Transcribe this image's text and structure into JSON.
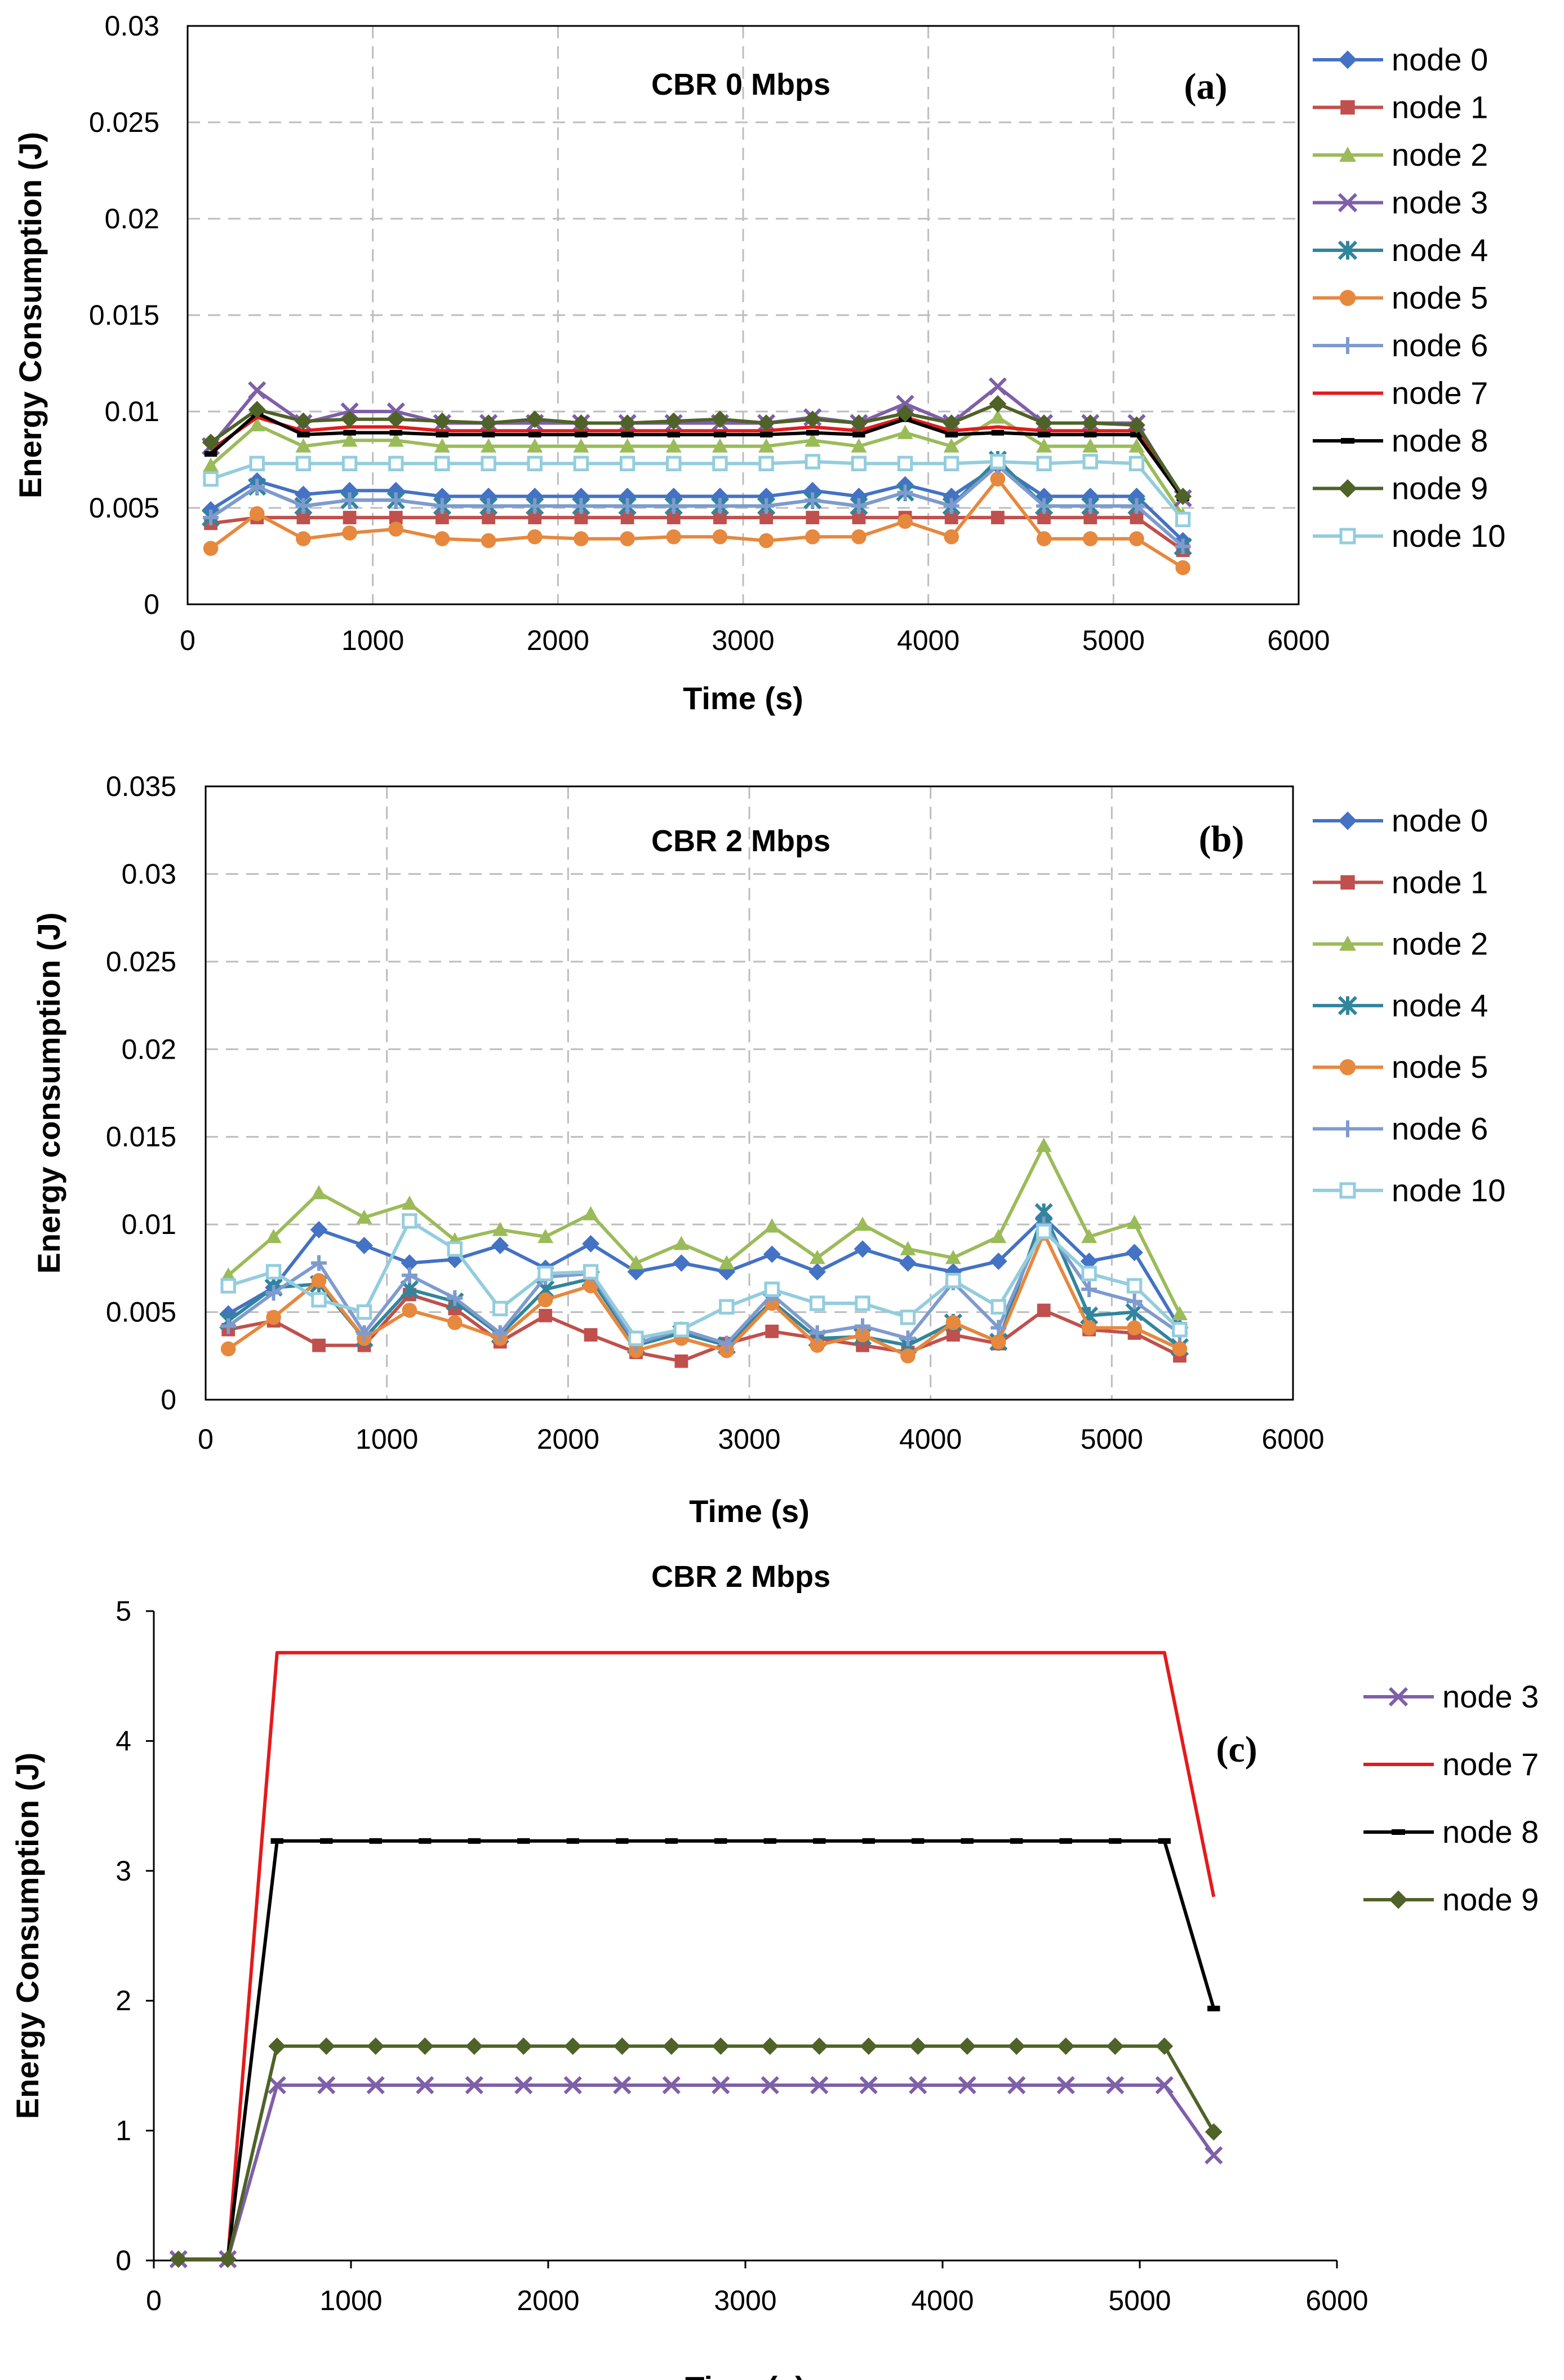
{
  "chart_data": [
    {
      "panel": "a",
      "type": "line",
      "title": "CBR 0 Mbps",
      "panel_label": "(a)",
      "xlabel": "Time (s)",
      "ylabel": "Energy Consumption (J)",
      "xlim": [
        0,
        6000
      ],
      "ylim": [
        0,
        0.03
      ],
      "xticks": [
        0,
        1000,
        2000,
        3000,
        4000,
        5000,
        6000
      ],
      "yticks": [
        0,
        0.005,
        0.01,
        0.015,
        0.02,
        0.025,
        0.03
      ],
      "ytick_labels": [
        "0",
        "0.005",
        "0.01",
        "0.015",
        "0.02",
        "0.025",
        "0.03"
      ],
      "grid": "dashed",
      "legend_position": "right",
      "x": [
        125,
        375,
        625,
        875,
        1125,
        1375,
        1625,
        1875,
        2125,
        2375,
        2625,
        2875,
        3125,
        3375,
        3625,
        3875,
        4125,
        4375,
        4625,
        4875,
        5125,
        5375
      ],
      "series": [
        {
          "name": "node 0",
          "color": "#4472C4",
          "marker": "diamond",
          "values": [
            0.0049,
            0.0064,
            0.0057,
            0.0059,
            0.0059,
            0.0056,
            0.0056,
            0.0056,
            0.0056,
            0.0056,
            0.0056,
            0.0056,
            0.0056,
            0.0059,
            0.0056,
            0.0062,
            0.0056,
            0.0072,
            0.0056,
            0.0056,
            0.0056,
            0.0033
          ]
        },
        {
          "name": "node 1",
          "color": "#C0504D",
          "marker": "square",
          "values": [
            0.0042,
            0.0045,
            0.0045,
            0.0045,
            0.0045,
            0.0045,
            0.0045,
            0.0045,
            0.0045,
            0.0045,
            0.0045,
            0.0045,
            0.0045,
            0.0045,
            0.0045,
            0.0045,
            0.0045,
            0.0045,
            0.0045,
            0.0045,
            0.0045,
            0.0028
          ]
        },
        {
          "name": "node 2",
          "color": "#9BBB59",
          "marker": "triangle",
          "values": [
            0.0072,
            0.0093,
            0.0082,
            0.0085,
            0.0085,
            0.0082,
            0.0082,
            0.0082,
            0.0082,
            0.0082,
            0.0082,
            0.0082,
            0.0082,
            0.0085,
            0.0082,
            0.0089,
            0.0082,
            0.0097,
            0.0082,
            0.0082,
            0.0082,
            0.0046
          ]
        },
        {
          "name": "node 3",
          "color": "#7F5FA8",
          "marker": "x",
          "values": [
            0.0082,
            0.0111,
            0.0094,
            0.01,
            0.01,
            0.0094,
            0.0094,
            0.0094,
            0.0094,
            0.0094,
            0.0094,
            0.0094,
            0.0094,
            0.0097,
            0.0094,
            0.0104,
            0.0094,
            0.0113,
            0.0094,
            0.0094,
            0.0094,
            0.0055
          ]
        },
        {
          "name": "node 4",
          "color": "#31859C",
          "marker": "star",
          "values": [
            0.0045,
            0.0061,
            0.0051,
            0.0054,
            0.0054,
            0.0051,
            0.0051,
            0.0051,
            0.0051,
            0.0051,
            0.0051,
            0.0051,
            0.0051,
            0.0054,
            0.0051,
            0.0058,
            0.0051,
            0.0075,
            0.0051,
            0.0051,
            0.0051,
            0.003
          ]
        },
        {
          "name": "node 5",
          "color": "#E6883E",
          "marker": "circle",
          "values": [
            0.0029,
            0.0047,
            0.0034,
            0.0037,
            0.0039,
            0.0034,
            0.0033,
            0.0035,
            0.0034,
            0.0034,
            0.0035,
            0.0035,
            0.0033,
            0.0035,
            0.0035,
            0.0043,
            0.0035,
            0.0065,
            0.0034,
            0.0034,
            0.0034,
            0.0019
          ]
        },
        {
          "name": "node 6",
          "color": "#7E9BCF",
          "marker": "plus",
          "values": [
            0.0045,
            0.0061,
            0.0051,
            0.0054,
            0.0054,
            0.0051,
            0.0051,
            0.0051,
            0.0051,
            0.0051,
            0.0051,
            0.0051,
            0.0051,
            0.0054,
            0.0051,
            0.0058,
            0.0051,
            0.0072,
            0.0051,
            0.0051,
            0.0051,
            0.003
          ]
        },
        {
          "name": "node 7",
          "color": "#E41A1C",
          "marker": "none",
          "values": [
            0.008,
            0.0097,
            0.009,
            0.0092,
            0.0092,
            0.009,
            0.009,
            0.009,
            0.009,
            0.009,
            0.009,
            0.009,
            0.009,
            0.0092,
            0.009,
            0.0097,
            0.009,
            0.0092,
            0.009,
            0.009,
            0.009,
            0.0055
          ]
        },
        {
          "name": "node 8",
          "color": "#000000",
          "marker": "dash",
          "values": [
            0.0078,
            0.0099,
            0.0088,
            0.0089,
            0.0089,
            0.0088,
            0.0088,
            0.0088,
            0.0088,
            0.0088,
            0.0088,
            0.0088,
            0.0088,
            0.0089,
            0.0088,
            0.0096,
            0.0088,
            0.0089,
            0.0088,
            0.0088,
            0.0088,
            0.0055
          ]
        },
        {
          "name": "node 9",
          "color": "#4F6228",
          "marker": "diamond",
          "values": [
            0.0084,
            0.0101,
            0.0095,
            0.0096,
            0.0096,
            0.0095,
            0.0094,
            0.0096,
            0.0094,
            0.0094,
            0.0095,
            0.0096,
            0.0094,
            0.0096,
            0.0094,
            0.0099,
            0.0094,
            0.0104,
            0.0094,
            0.0094,
            0.0093,
            0.0056
          ]
        },
        {
          "name": "node 10",
          "color": "#93CDDD",
          "marker": "open-square",
          "values": [
            0.0065,
            0.0073,
            0.0073,
            0.0073,
            0.0073,
            0.0073,
            0.0073,
            0.0073,
            0.0073,
            0.0073,
            0.0073,
            0.0073,
            0.0073,
            0.0074,
            0.0073,
            0.0073,
            0.0073,
            0.0074,
            0.0073,
            0.0074,
            0.0073,
            0.0044
          ]
        }
      ]
    },
    {
      "panel": "b",
      "type": "line",
      "title": "CBR 2 Mbps",
      "panel_label": "(b)",
      "xlabel": "Time (s)",
      "ylabel": "Energy consumption (J)",
      "xlim": [
        0,
        6000
      ],
      "ylim": [
        0,
        0.035
      ],
      "xticks": [
        0,
        1000,
        2000,
        3000,
        4000,
        5000,
        6000
      ],
      "yticks": [
        0,
        0.005,
        0.01,
        0.015,
        0.02,
        0.025,
        0.03,
        0.035
      ],
      "ytick_labels": [
        "0",
        "0.005",
        "0.01",
        "0.015",
        "0.02",
        "0.025",
        "0.03",
        "0.035"
      ],
      "grid": "dashed",
      "legend_position": "right",
      "x": [
        125,
        375,
        625,
        875,
        1125,
        1375,
        1625,
        1875,
        2125,
        2375,
        2625,
        2875,
        3125,
        3375,
        3625,
        3875,
        4125,
        4375,
        4625,
        4875,
        5125,
        5375
      ],
      "series": [
        {
          "name": "node 0",
          "color": "#4472C4",
          "marker": "diamond",
          "values": [
            0.0049,
            0.0064,
            0.0097,
            0.0088,
            0.0078,
            0.008,
            0.0088,
            0.0075,
            0.0089,
            0.0073,
            0.0078,
            0.0073,
            0.0083,
            0.0073,
            0.0086,
            0.0078,
            0.0073,
            0.0079,
            0.0104,
            0.0079,
            0.0084,
            0.0041
          ]
        },
        {
          "name": "node 1",
          "color": "#C0504D",
          "marker": "square",
          "values": [
            0.004,
            0.0045,
            0.0031,
            0.0031,
            0.006,
            0.0052,
            0.0033,
            0.0048,
            0.0037,
            0.0027,
            0.0022,
            0.0032,
            0.0039,
            0.0035,
            0.0031,
            0.0027,
            0.0037,
            0.0032,
            0.0051,
            0.004,
            0.0038,
            0.0025
          ]
        },
        {
          "name": "node 2",
          "color": "#9BBB59",
          "marker": "triangle",
          "values": [
            0.0071,
            0.0093,
            0.0118,
            0.0104,
            0.0112,
            0.0091,
            0.0097,
            0.0093,
            0.0106,
            0.0078,
            0.0089,
            0.0078,
            0.0099,
            0.0081,
            0.01,
            0.0086,
            0.0081,
            0.0093,
            0.0145,
            0.0093,
            0.0101,
            0.0049
          ]
        },
        {
          "name": "node 4",
          "color": "#31859C",
          "marker": "star",
          "values": [
            0.0045,
            0.0064,
            0.0066,
            0.0035,
            0.0063,
            0.0056,
            0.0037,
            0.0063,
            0.0069,
            0.0031,
            0.0038,
            0.0031,
            0.0056,
            0.0035,
            0.0036,
            0.0031,
            0.0044,
            0.0033,
            0.0107,
            0.0048,
            0.005,
            0.003
          ]
        },
        {
          "name": "node 5",
          "color": "#E6883E",
          "marker": "circle",
          "values": [
            0.0029,
            0.0047,
            0.0068,
            0.0035,
            0.0051,
            0.0044,
            0.0035,
            0.0057,
            0.0065,
            0.0028,
            0.0035,
            0.0028,
            0.0055,
            0.0031,
            0.0037,
            0.0025,
            0.0044,
            0.0033,
            0.0095,
            0.0041,
            0.0041,
            0.0029
          ]
        },
        {
          "name": "node 6",
          "color": "#7E9BCF",
          "marker": "plus",
          "values": [
            0.0042,
            0.0061,
            0.0078,
            0.0038,
            0.0071,
            0.0058,
            0.0038,
            0.007,
            0.0072,
            0.0032,
            0.004,
            0.0032,
            0.006,
            0.0038,
            0.0042,
            0.0035,
            0.0067,
            0.0041,
            0.01,
            0.0063,
            0.0056,
            0.0038
          ]
        },
        {
          "name": "node 10",
          "color": "#93CDDD",
          "marker": "open-square",
          "values": [
            0.0065,
            0.0073,
            0.0057,
            0.005,
            0.0102,
            0.0086,
            0.0052,
            0.0072,
            0.0073,
            0.0035,
            0.004,
            0.0053,
            0.0063,
            0.0055,
            0.0055,
            0.0047,
            0.0068,
            0.0053,
            0.0096,
            0.0072,
            0.0065,
            0.004
          ]
        }
      ]
    },
    {
      "panel": "c",
      "type": "line",
      "title": "CBR 2 Mbps",
      "panel_label": "(c)",
      "xlabel": "Time (s)",
      "ylabel": "Energy Consumption (J)",
      "xlim": [
        0,
        6000
      ],
      "ylim": [
        0,
        5
      ],
      "xticks": [
        0,
        1000,
        2000,
        3000,
        4000,
        5000,
        6000
      ],
      "yticks": [
        0,
        1,
        2,
        3,
        4,
        5
      ],
      "ytick_labels": [
        "0",
        "1",
        "2",
        "3",
        "4",
        "5"
      ],
      "grid": "none",
      "legend_position": "right",
      "x": [
        125,
        375,
        625,
        875,
        1125,
        1375,
        1625,
        1875,
        2125,
        2375,
        2625,
        2875,
        3125,
        3375,
        3625,
        3875,
        4125,
        4375,
        4625,
        4875,
        5125,
        5375
      ],
      "series": [
        {
          "name": "node 3",
          "color": "#7F5FA8",
          "marker": "x",
          "values": [
            0.01,
            0.01,
            1.35,
            1.35,
            1.35,
            1.35,
            1.35,
            1.35,
            1.35,
            1.35,
            1.35,
            1.35,
            1.35,
            1.35,
            1.35,
            1.35,
            1.35,
            1.35,
            1.35,
            1.35,
            1.35,
            0.81
          ]
        },
        {
          "name": "node 7",
          "color": "#E41A1C",
          "marker": "none",
          "values": [
            0.01,
            0.01,
            4.68,
            4.68,
            4.68,
            4.68,
            4.68,
            4.68,
            4.68,
            4.68,
            4.68,
            4.68,
            4.68,
            4.68,
            4.68,
            4.68,
            4.68,
            4.68,
            4.68,
            4.68,
            4.68,
            2.8
          ]
        },
        {
          "name": "node 8",
          "color": "#000000",
          "marker": "dash",
          "values": [
            0.01,
            0.01,
            3.23,
            3.23,
            3.23,
            3.23,
            3.23,
            3.23,
            3.23,
            3.23,
            3.23,
            3.23,
            3.23,
            3.23,
            3.23,
            3.23,
            3.23,
            3.23,
            3.23,
            3.23,
            3.23,
            1.94
          ]
        },
        {
          "name": "node 9",
          "color": "#4F6228",
          "marker": "diamond",
          "values": [
            0.01,
            0.01,
            1.65,
            1.65,
            1.65,
            1.65,
            1.65,
            1.65,
            1.65,
            1.65,
            1.65,
            1.65,
            1.65,
            1.65,
            1.65,
            1.65,
            1.65,
            1.65,
            1.65,
            1.65,
            1.65,
            0.99
          ]
        }
      ]
    }
  ]
}
